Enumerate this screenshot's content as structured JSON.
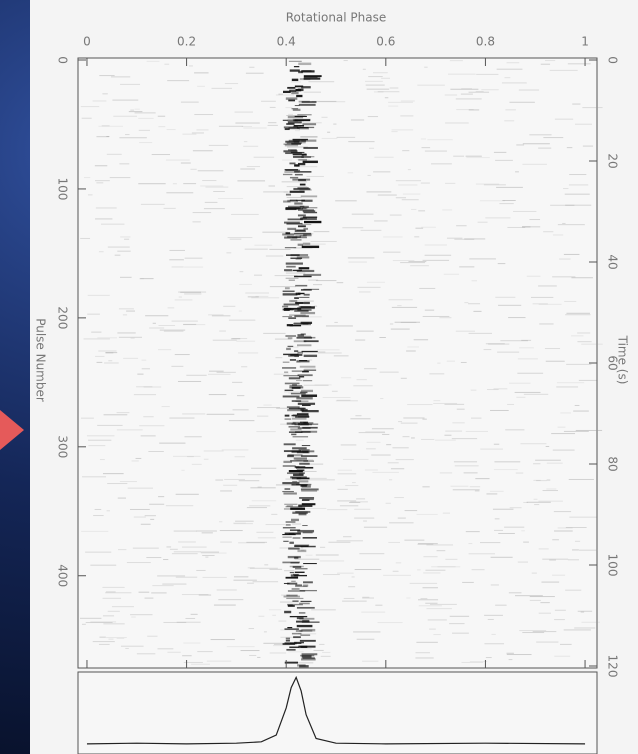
{
  "chart_data": [
    {
      "type": "stack",
      "x_label": "Rotational Phase",
      "y_label": "Pulse Number",
      "y2_label": "Time (s)",
      "xlim": [
        -0.018,
        1.024
      ],
      "xticks": [
        0,
        0.2,
        0.4,
        0.6,
        0.8,
        1
      ],
      "ylim": [
        0,
        470
      ],
      "yticks": [
        0,
        100,
        200,
        300,
        400
      ],
      "y2lim": [
        0,
        120
      ],
      "y2ticks": [
        0,
        20,
        40,
        60,
        80,
        100,
        120
      ]
    },
    {
      "type": "line",
      "xlim": [
        -0.018,
        1.024
      ],
      "ylim": [
        -0.1,
        1.05
      ],
      "color": "#222222",
      "x": [
        0,
        0.1,
        0.2,
        0.3,
        0.35,
        0.38,
        0.4,
        0.41,
        0.42,
        0.43,
        0.44,
        0.46,
        0.5,
        0.6,
        0.8,
        1
      ],
      "values": [
        0.02,
        0.03,
        0.02,
        0.03,
        0.05,
        0.15,
        0.55,
        0.85,
        1.0,
        0.8,
        0.45,
        0.1,
        0.03,
        0.02,
        0.03,
        0.02
      ]
    }
  ]
}
